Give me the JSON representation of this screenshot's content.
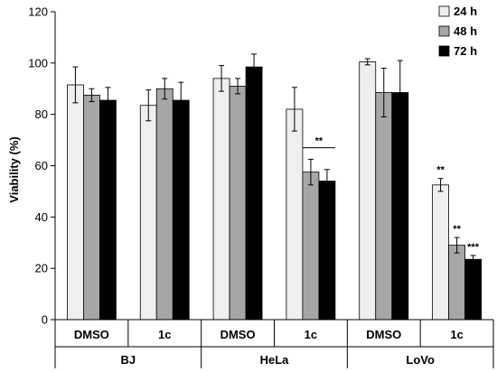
{
  "chart_data": {
    "type": "bar",
    "ylabel": "Viability (%)",
    "ylim": [
      0,
      120
    ],
    "yticks": [
      0,
      20,
      40,
      60,
      80,
      100,
      120
    ],
    "categories": [
      "DMSO",
      "1c",
      "DMSO",
      "1c",
      "DMSO",
      "1c"
    ],
    "groups": [
      {
        "label": "BJ",
        "categories": [
          0,
          1
        ]
      },
      {
        "label": "HeLa",
        "categories": [
          2,
          3
        ]
      },
      {
        "label": "LoVo",
        "categories": [
          4,
          5
        ]
      }
    ],
    "legend_position": "top-right",
    "series": [
      {
        "name": "24 h",
        "color": "#efefef",
        "values": [
          91.5,
          83.5,
          94.0,
          82.0,
          100.5,
          52.5
        ],
        "errors": [
          7.0,
          6.0,
          5.0,
          8.5,
          1.2,
          2.5
        ]
      },
      {
        "name": "48 h",
        "color": "#a6a6a6",
        "values": [
          87.5,
          90.0,
          91.0,
          57.5,
          88.5,
          29.0
        ],
        "errors": [
          2.5,
          4.0,
          3.0,
          5.0,
          9.5,
          3.0
        ]
      },
      {
        "name": "72 h",
        "color": "#000000",
        "values": [
          85.5,
          85.5,
          98.5,
          54.0,
          88.5,
          23.5
        ],
        "errors": [
          5.0,
          7.0,
          5.0,
          4.5,
          12.5,
          1.5
        ]
      }
    ],
    "annotations": [
      {
        "text": "**",
        "category": 3,
        "bracket": [
          1,
          2
        ],
        "y": 67
      },
      {
        "text": "**",
        "category": 5,
        "series": 0
      },
      {
        "text": "**",
        "category": 5,
        "series": 1
      },
      {
        "text": "***",
        "category": 5,
        "series": 2
      }
    ]
  }
}
